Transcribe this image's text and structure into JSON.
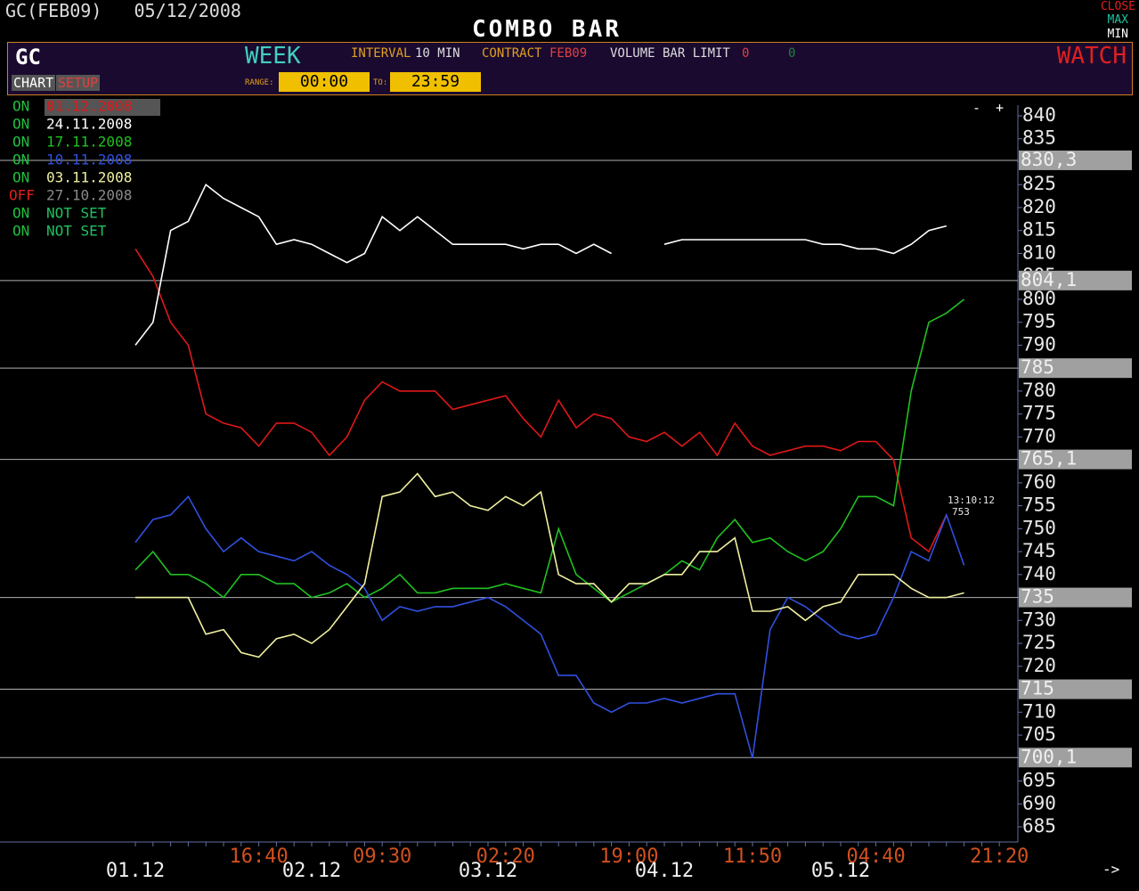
{
  "header": {
    "symbol_date": "GC(FEB09)   05/12/2008",
    "title": "COMBO BAR",
    "close": "CLOSE",
    "max": "MAX",
    "min": "MIN"
  },
  "panel": {
    "symbol": "GC",
    "period": "WEEK",
    "interval_label": "INTERVAL",
    "interval": "10 MIN",
    "contract_label": "CONTRACT",
    "contract": "FEB09",
    "volume_label": "VOLUME BAR LIMIT",
    "volume_limit": "0",
    "volume_extra": "0",
    "watch": "WATCH",
    "chart_tab": "CHART",
    "setup_tab": "SETUP",
    "range_label": "RANGE:",
    "range_from": "00:00",
    "to_label": "TO:",
    "range_to": "23:59"
  },
  "controls": {
    "minus": "-",
    "plus": "+",
    "arrow": "->"
  },
  "chart_data": {
    "type": "line",
    "categories": [
      "01.12",
      null,
      null,
      null,
      null,
      null,
      null,
      "16:40",
      null,
      null,
      "02.12",
      null,
      null,
      null,
      "09:30",
      null,
      null,
      null,
      null,
      null,
      "03.12",
      "02:20",
      null,
      null,
      null,
      null,
      null,
      null,
      "19:00",
      null,
      "04.12",
      null,
      null,
      null,
      null,
      "11:50",
      null,
      null,
      null,
      null,
      "05.12",
      null,
      "04:40",
      null,
      null,
      null,
      null,
      null,
      null,
      "21:20"
    ],
    "ylim": [
      685,
      840
    ],
    "yticks": [
      685,
      690,
      695,
      700,
      705,
      710,
      715,
      720,
      725,
      730,
      735,
      740,
      745,
      750,
      755,
      760,
      765,
      770,
      775,
      780,
      785,
      790,
      795,
      800,
      805,
      810,
      815,
      820,
      825,
      830,
      835,
      840
    ],
    "levels": [
      {
        "value": 830.3,
        "label": "830,3"
      },
      {
        "value": 804.1,
        "label": "804,1"
      },
      {
        "value": 785,
        "label": "785"
      },
      {
        "value": 765.1,
        "label": "765,1"
      },
      {
        "value": 735,
        "label": "735"
      },
      {
        "value": 715,
        "label": "715"
      },
      {
        "value": 700.1,
        "label": "700,1"
      }
    ],
    "annotation": {
      "time": "13:10:12",
      "value": "753"
    },
    "series": [
      {
        "status": "ON",
        "name": "01.12.2008",
        "color": "#e01818",
        "values": [
          811,
          805,
          795,
          790,
          775,
          773,
          772,
          768,
          773,
          773,
          771,
          766,
          770,
          778,
          782,
          780,
          780,
          780,
          776,
          777,
          778,
          779,
          774,
          770,
          778,
          772,
          775,
          774,
          770,
          769,
          771,
          768,
          771,
          766,
          773,
          768,
          766,
          767,
          768,
          768,
          767,
          769,
          769,
          765,
          748,
          745,
          753,
          null,
          null,
          null
        ]
      },
      {
        "status": "ON",
        "name": "24.11.2008",
        "color": "#ffffff",
        "values": [
          790,
          795,
          815,
          817,
          825,
          822,
          820,
          818,
          812,
          813,
          812,
          810,
          808,
          810,
          818,
          815,
          818,
          815,
          812,
          812,
          812,
          812,
          811,
          812,
          812,
          810,
          812,
          810,
          null,
          null,
          812,
          813,
          813,
          813,
          813,
          813,
          813,
          813,
          813,
          812,
          812,
          811,
          811,
          810,
          812,
          815,
          816,
          null,
          null,
          null
        ]
      },
      {
        "status": "ON",
        "name": "17.11.2008",
        "color": "#20c020",
        "values": [
          741,
          745,
          740,
          740,
          738,
          735,
          740,
          740,
          738,
          738,
          735,
          736,
          738,
          735,
          737,
          740,
          736,
          736,
          737,
          737,
          737,
          738,
          737,
          736,
          750,
          740,
          737,
          734,
          736,
          738,
          740,
          743,
          741,
          748,
          752,
          747,
          748,
          745,
          743,
          745,
          750,
          757,
          757,
          755,
          780,
          795,
          797,
          800,
          null,
          null
        ]
      },
      {
        "status": "ON",
        "name": "10.11.2008",
        "color": "#3050e0",
        "values": [
          747,
          752,
          753,
          757,
          750,
          745,
          748,
          745,
          744,
          743,
          745,
          742,
          740,
          737,
          730,
          733,
          732,
          733,
          733,
          734,
          735,
          733,
          730,
          727,
          718,
          718,
          712,
          710,
          712,
          712,
          713,
          712,
          713,
          714,
          714,
          700,
          728,
          735,
          733,
          730,
          727,
          726,
          727,
          735,
          745,
          743,
          753,
          742,
          null,
          null
        ]
      },
      {
        "status": "ON",
        "name": "03.11.2008",
        "color": "#f0f0a0",
        "values": [
          735,
          735,
          735,
          735,
          727,
          728,
          723,
          722,
          726,
          727,
          725,
          728,
          733,
          738,
          757,
          758,
          762,
          757,
          758,
          755,
          754,
          757,
          755,
          758,
          740,
          738,
          738,
          734,
          738,
          738,
          740,
          740,
          745,
          745,
          748,
          732,
          732,
          733,
          730,
          733,
          734,
          740,
          740,
          740,
          737,
          735,
          735,
          736,
          null,
          null
        ]
      }
    ],
    "inactive_series": [
      {
        "status": "OFF",
        "name": "27.10.2008",
        "color": "#8a8a8a"
      },
      {
        "status": "ON",
        "name": "NOT SET",
        "color": "#20c060"
      },
      {
        "status": "ON",
        "name": "NOT SET",
        "color": "#20c060"
      }
    ]
  }
}
